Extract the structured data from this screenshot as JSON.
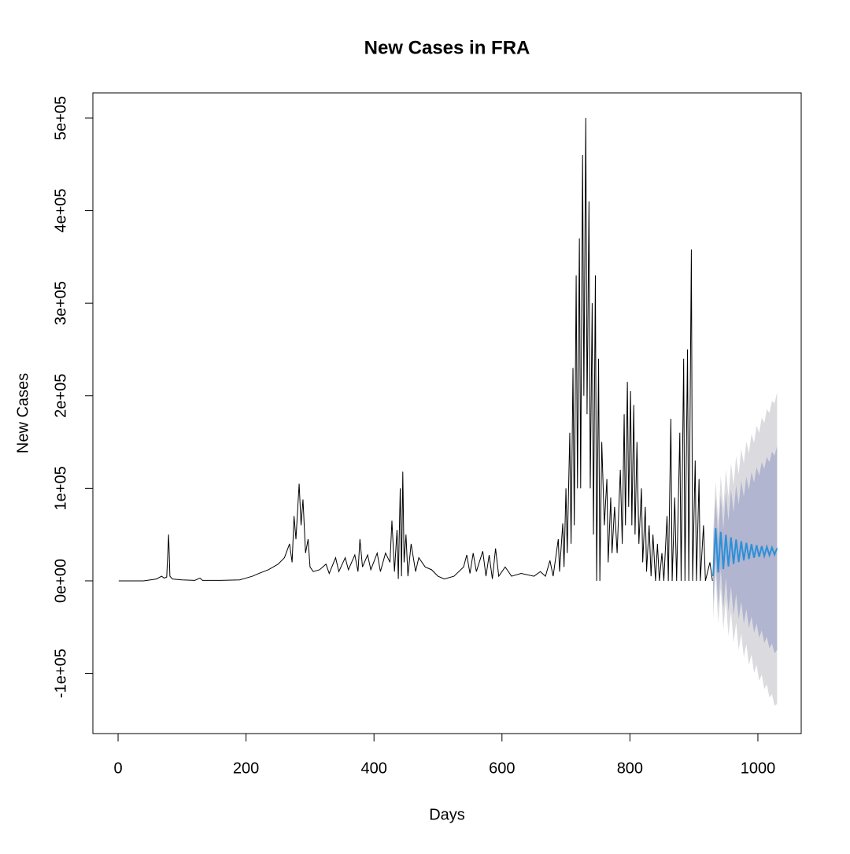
{
  "chart_data": {
    "type": "line",
    "title": "New Cases in FRA",
    "x_label": "Days",
    "y_label": "New Cases",
    "xlim": [
      -39.4,
      1067.7
    ],
    "ylim": [
      -165000,
      527200
    ],
    "xticks": [
      0,
      200,
      400,
      600,
      800,
      1000
    ],
    "yticks": [
      {
        "value": -100000,
        "label": "-1e+05"
      },
      {
        "value": 0,
        "label": "0e+00"
      },
      {
        "value": 100000,
        "label": "1e+05"
      },
      {
        "value": 200000,
        "label": "2e+05"
      },
      {
        "value": 300000,
        "label": "3e+05"
      },
      {
        "value": 400000,
        "label": "4e+05"
      },
      {
        "value": 500000,
        "label": "5e+05"
      }
    ],
    "x": [
      1,
      40,
      60,
      68,
      72,
      76,
      79,
      81,
      85,
      100,
      120,
      128,
      132,
      160,
      190,
      200,
      210,
      220,
      235,
      250,
      260,
      268,
      272,
      275,
      278,
      283,
      286,
      289,
      293,
      297,
      300,
      305,
      315,
      325,
      330,
      340,
      345,
      355,
      360,
      370,
      375,
      378,
      382,
      390,
      395,
      405,
      410,
      418,
      425,
      428,
      432,
      436,
      438,
      441,
      443,
      445,
      447,
      450,
      453,
      458,
      465,
      470,
      480,
      490,
      500,
      510,
      525,
      540,
      545,
      550,
      555,
      560,
      570,
      575,
      580,
      585,
      590,
      595,
      605,
      615,
      630,
      650,
      660,
      668,
      675,
      680,
      688,
      690,
      695,
      697,
      700,
      702,
      706,
      708,
      711,
      713,
      716,
      718,
      721,
      723,
      726,
      728,
      731,
      733,
      736,
      738,
      741,
      743,
      746,
      748,
      751,
      753,
      756,
      760,
      764,
      766,
      770,
      772,
      776,
      780,
      785,
      788,
      791,
      793,
      796,
      798,
      801,
      803,
      806,
      808,
      811,
      814,
      818,
      820,
      824,
      826,
      830,
      833,
      836,
      840,
      843,
      846,
      850,
      853,
      858,
      860,
      864,
      866,
      870,
      873,
      878,
      880,
      884,
      886,
      890,
      892,
      896,
      898,
      902,
      904,
      908,
      910,
      915,
      918,
      925,
      929
    ],
    "series": [
      {
        "color": "#000000",
        "values": [
          0,
          0,
          2000,
          5000,
          3000,
          4000,
          50000,
          5000,
          2000,
          1000,
          500,
          3000,
          500,
          500,
          1000,
          3000,
          5000,
          8000,
          12000,
          18000,
          25000,
          40000,
          20000,
          70000,
          45000,
          105000,
          60000,
          88000,
          30000,
          45000,
          15000,
          10000,
          12000,
          18000,
          8000,
          25000,
          10000,
          25000,
          12000,
          28000,
          10000,
          45000,
          15000,
          28000,
          12000,
          30000,
          10000,
          30000,
          20000,
          65000,
          10000,
          55000,
          2000,
          100000,
          5000,
          118000,
          20000,
          50000,
          5000,
          40000,
          10000,
          25000,
          15000,
          12000,
          5000,
          2000,
          5000,
          15000,
          28000,
          8000,
          30000,
          10000,
          32000,
          5000,
          28000,
          2000,
          35000,
          5000,
          15000,
          5000,
          8000,
          5000,
          10000,
          5000,
          22000,
          5000,
          45000,
          10000,
          62000,
          15000,
          100000,
          30000,
          160000,
          40000,
          230000,
          60000,
          330000,
          100000,
          370000,
          100000,
          460000,
          200000,
          500000,
          180000,
          410000,
          100000,
          300000,
          50000,
          330000,
          0,
          240000,
          0,
          150000,
          60000,
          110000,
          20000,
          90000,
          30000,
          80000,
          30000,
          120000,
          40000,
          180000,
          60000,
          215000,
          80000,
          205000,
          60000,
          190000,
          50000,
          150000,
          40000,
          100000,
          20000,
          80000,
          10000,
          60000,
          5000,
          50000,
          0,
          40000,
          0,
          30000,
          0,
          70000,
          0,
          175000,
          0,
          90000,
          0,
          160000,
          0,
          240000,
          0,
          250000,
          0,
          358000,
          0,
          130000,
          0,
          110000,
          0,
          60000,
          0,
          20000,
          0
        ]
      }
    ],
    "forecast": {
      "color": "#2b90d9",
      "x": [
        930,
        934,
        938,
        942,
        946,
        950,
        954,
        958,
        962,
        966,
        970,
        974,
        978,
        982,
        986,
        990,
        994,
        998,
        1002,
        1006,
        1010,
        1014,
        1018,
        1022,
        1026,
        1030
      ],
      "values": [
        5000,
        56800,
        9100,
        53000,
        12700,
        49800,
        15600,
        47000,
        18200,
        44700,
        20300,
        42800,
        22100,
        41100,
        23600,
        39700,
        24900,
        38500,
        26000,
        37500,
        26900,
        36700,
        27700,
        36000,
        28400,
        35300
      ],
      "bands": [
        {
          "color": "#dbdbdf",
          "lower": [
            -41000,
            6000,
            -46600,
            -7600,
            -52800,
            -20600,
            -59700,
            -33200,
            -66900,
            -45300,
            -74600,
            -57000,
            -82600,
            -68400,
            -90800,
            -79600,
            -99300,
            -90600,
            -108000,
            -101400,
            -116900,
            -112000,
            -125900,
            -122500,
            -135000,
            -133000
          ],
          "upper": [
            51000,
            107600,
            64800,
            113600,
            78200,
            120200,
            90900,
            127200,
            103300,
            134700,
            115200,
            142600,
            126800,
            150600,
            138000,
            159000,
            149100,
            167600,
            160000,
            176400,
            170700,
            185400,
            181300,
            194500,
            191800,
            203600
          ]
        },
        {
          "color": "#b1b5cf",
          "lower": [
            -25000,
            23600,
            -27300,
            13400,
            -30100,
            3800,
            -33600,
            -5400,
            -37400,
            -14100,
            -41700,
            -22400,
            -46300,
            -30500,
            -51200,
            -38300,
            -56300,
            -45900,
            -61600,
            -53300,
            -67100,
            -60500,
            -72700,
            -67600,
            -78400,
            -74700
          ],
          "upper": [
            35000,
            90000,
            45500,
            92600,
            55500,
            95800,
            64800,
            99400,
            73800,
            103500,
            82300,
            108000,
            90500,
            112700,
            98400,
            117700,
            106100,
            122900,
            113600,
            128300,
            120900,
            133900,
            128100,
            139600,
            135200,
            145300
          ]
        }
      ]
    }
  }
}
